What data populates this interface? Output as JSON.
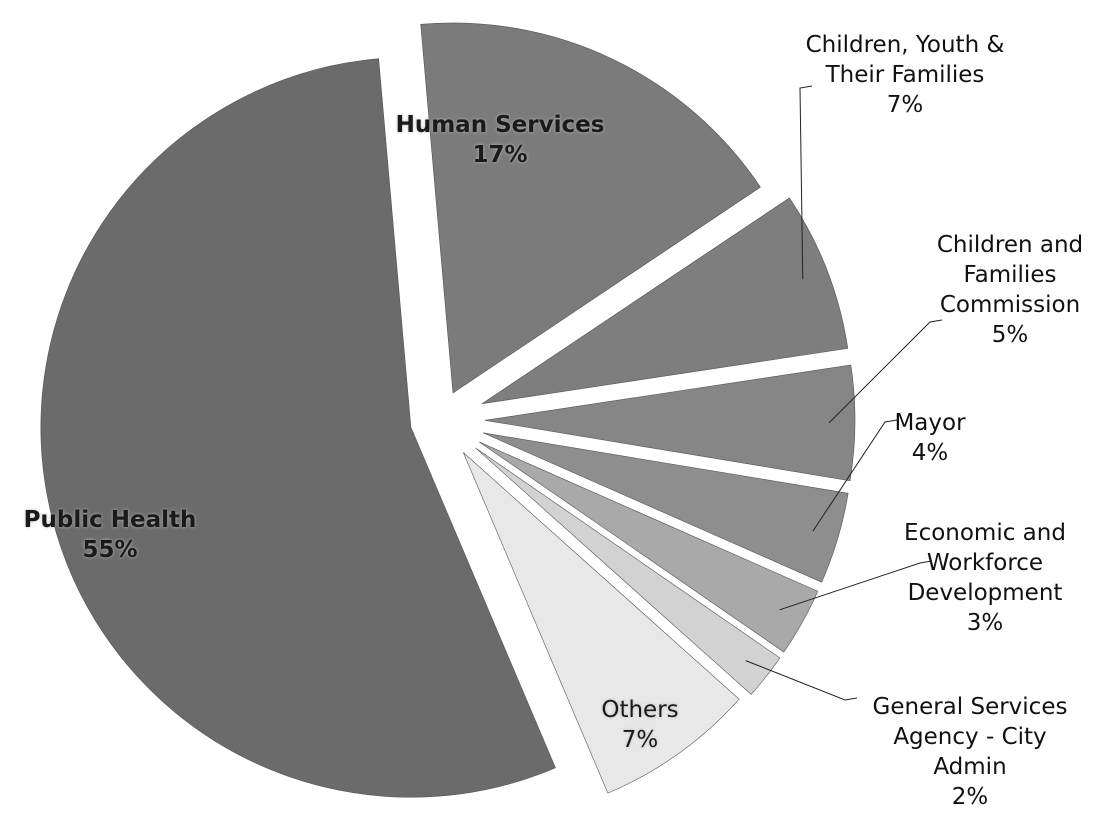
{
  "chart_data": {
    "type": "pie",
    "categories": [
      "Human Services",
      "Children, Youth & Their Families",
      "Children and Families Commission",
      "Mayor",
      "Economic and Workforce Development",
      "General Services Agency - City Admin",
      "Others",
      "Public Health"
    ],
    "values": [
      17,
      7,
      5,
      4,
      3,
      2,
      7,
      55
    ],
    "value_labels": [
      "17%",
      "7%",
      "5%",
      "4%",
      "3%",
      "2%",
      "7%",
      "55%"
    ],
    "colors": [
      "#7b7b7b",
      "#7e7e7e",
      "#868686",
      "#8e8e8e",
      "#a9a9a9",
      "#d2d2d2",
      "#e8e8e8",
      "#6b6b6b"
    ]
  }
}
